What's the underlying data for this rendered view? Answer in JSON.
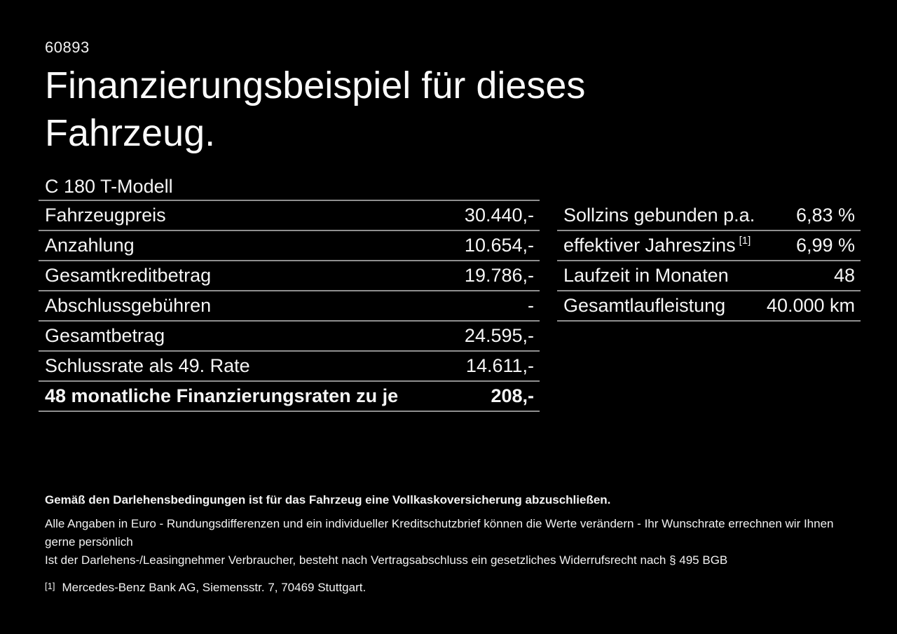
{
  "page": {
    "id_number": "60893",
    "title": "Finanzierungsbeispiel für dieses Fahrzeug.",
    "model": "C 180 T-Modell"
  },
  "colors": {
    "background": "#000000",
    "text": "#f5f5f5",
    "divider": "#8f8f8f"
  },
  "left_table": {
    "header": "C 180 T-Modell",
    "rows": [
      {
        "label": "Fahrzeugpreis",
        "value": "30.440,-",
        "emphasis": false
      },
      {
        "label": "Anzahlung",
        "value": "10.654,-",
        "emphasis": false
      },
      {
        "label": "Gesamtkreditbetrag",
        "value": "19.786,-",
        "emphasis": false
      },
      {
        "label": "Abschlussgebühren",
        "value": "-",
        "emphasis": false
      },
      {
        "label": "Gesamtbetrag",
        "value": "24.595,-",
        "emphasis": false
      },
      {
        "label": "Schlussrate als 49. Rate",
        "value": "14.611,-",
        "emphasis": false
      },
      {
        "label": "48 monatliche Finanzierungsraten zu je",
        "value": "208,-",
        "emphasis": true
      }
    ]
  },
  "right_table": {
    "rows": [
      {
        "label": "Sollzins gebunden p.a.",
        "footnote": "",
        "value": "6,83 %"
      },
      {
        "label": "effektiver Jahreszins",
        "footnote": "[1]",
        "value": "6,99 %"
      },
      {
        "label": "Laufzeit in Monaten",
        "footnote": "",
        "value": "48"
      },
      {
        "label": "Gesamtlaufleistung",
        "footnote": "",
        "value": "40.000 km"
      }
    ]
  },
  "footer": {
    "bold_note": "Gemäß den Darlehensbedingungen ist für das Fahrzeug eine Vollkaskoversicherung abzuschließen.",
    "note_line_1": "Alle Angaben in Euro - Rundungsdifferenzen und ein individueller Kreditschutzbrief können die Werte verändern - Ihr Wunschrate errechnen wir Ihnen gerne persönlich",
    "note_line_2": "Ist der Darlehens-/Leasingnehmer Verbraucher, besteht nach Vertragsabschluss ein gesetzliches Widerrufsrecht nach § 495 BGB",
    "footnote_marker": "[1]",
    "footnote_text": "Mercedes-Benz Bank AG, Siemensstr. 7, 70469 Stuttgart."
  }
}
